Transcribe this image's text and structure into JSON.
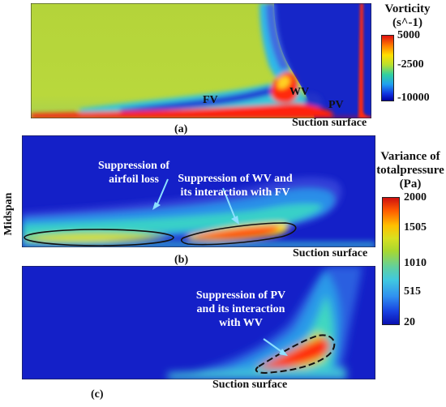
{
  "panel_a": {
    "label": "(a)",
    "surface_label": "Suction surface",
    "vortices": [
      "FV",
      "WV",
      "PV"
    ],
    "colorbar": {
      "title_line1": "Vorticity",
      "title_line2": "(s^-1)",
      "ticks": [
        "5000",
        "-2500",
        "-10000"
      ]
    }
  },
  "panel_b": {
    "label": "(b)",
    "surface_label": "Suction surface",
    "side_label": "Midspan",
    "annotation_left_1": "Suppression of",
    "annotation_left_2": "airfoil loss",
    "annotation_right_1": "Suppression of WV and",
    "annotation_right_2": "its interaction with FV"
  },
  "panel_c": {
    "label": "(c)",
    "surface_label": "Suction surface",
    "annotation_1": "Suppression of PV",
    "annotation_2": "and its interaction",
    "annotation_3": "with WV"
  },
  "colorbar_pressure": {
    "title_line1": "Variance of",
    "title_line2": "totalpressure",
    "title_line3": "(Pa)",
    "ticks": [
      "2000",
      "1505",
      "1010",
      "515",
      "20"
    ]
  },
  "colors": {
    "dark_blue": "#1420c8",
    "field_green": "#b6d63a",
    "red": "#ff1a00"
  }
}
